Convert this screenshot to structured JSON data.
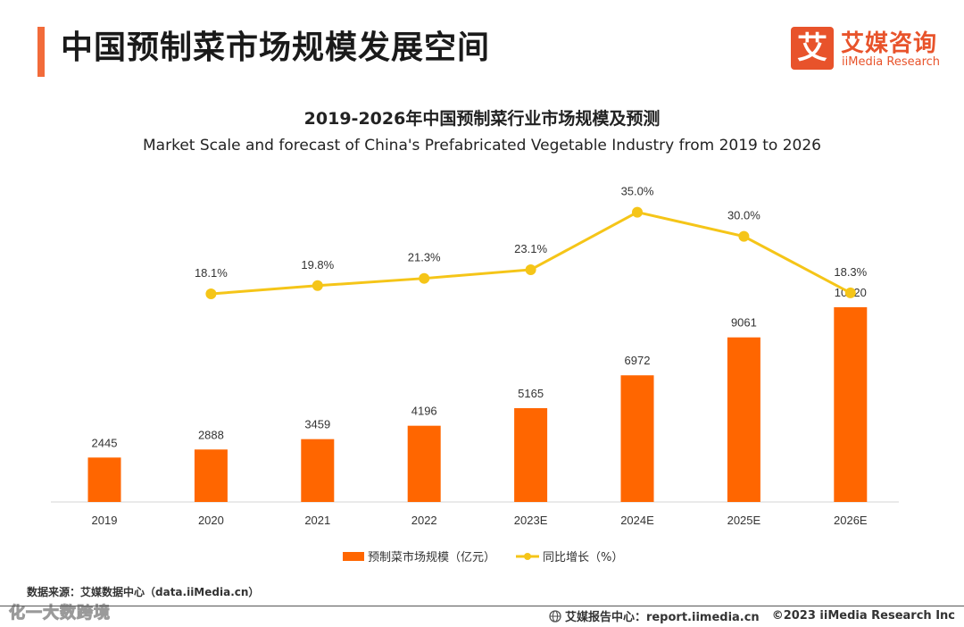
{
  "header": {
    "title": "中国预制菜市场规模发展空间",
    "logo_cn": "艾媒咨询",
    "logo_en": "iiMedia Research",
    "logo_char": "艾"
  },
  "chart_data": {
    "type": "bar",
    "title": "2019-2026年中国预制菜行业市场规模及预测",
    "subtitle": "Market Scale and forecast of China's Prefabricated Vegetable Industry from 2019 to 2026",
    "categories": [
      "2019",
      "2020",
      "2021",
      "2022",
      "2023E",
      "2024E",
      "2025E",
      "2026E"
    ],
    "series": [
      {
        "name": "预制菜市场规模（亿元）",
        "type": "bar",
        "color": "#ff6600",
        "values": [
          2445,
          2888,
          3459,
          4196,
          5165,
          6972,
          9061,
          10720
        ],
        "labels": [
          "2445",
          "2888",
          "3459",
          "4196",
          "5165",
          "6972",
          "9061",
          "10720"
        ]
      },
      {
        "name": "同比增长（%）",
        "type": "line",
        "color": "#f5c518",
        "values": [
          null,
          18.1,
          19.8,
          21.3,
          23.1,
          35.0,
          30.0,
          18.3
        ],
        "labels": [
          "",
          "18.1%",
          "19.8%",
          "21.3%",
          "23.1%",
          "35.0%",
          "30.0%",
          "18.3%"
        ]
      }
    ],
    "legend_position": "bottom",
    "grid": false
  },
  "footer": {
    "source": "数据来源：艾媒数据中心（data.iiMedia.cn）",
    "watermark": "化一大数跨境",
    "report_site": "艾媒报告中心：report.iimedia.cn",
    "copyright": "©2023  iiMedia Research  Inc"
  }
}
